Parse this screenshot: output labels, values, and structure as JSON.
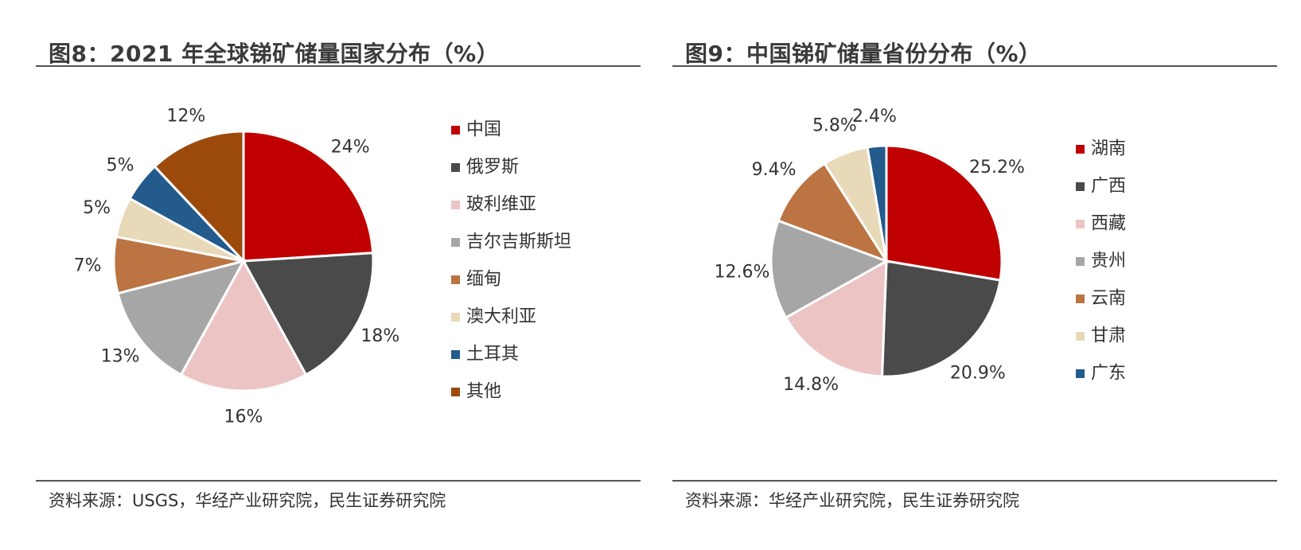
{
  "figures": [
    {
      "title": "图8：2021 年全球锑矿储量国家分布（%）",
      "source": "资料来源：USGS，华经产业研究院，民生证券研究院"
    },
    {
      "title": "图9：中国锑矿储量省份分布（%）",
      "source": "资料来源：华经产业研究院，民生证券研究院"
    }
  ],
  "chart_data": [
    {
      "type": "pie",
      "title": "图8：2021 年全球锑矿储量国家分布（%）",
      "legend_position": "right",
      "categories": [
        "中国",
        "俄罗斯",
        "玻利维亚",
        "吉尔吉斯斯坦",
        "缅甸",
        "澳大利亚",
        "土耳其",
        "其他"
      ],
      "values": [
        24,
        18,
        16,
        13,
        7,
        5,
        5,
        12
      ],
      "labels": [
        "24%",
        "18%",
        "16%",
        "13%",
        "7%",
        "5%",
        "5%",
        "12%"
      ],
      "colors": [
        "#c00000",
        "#4a4a4a",
        "#ecc4c4",
        "#a6a6a6",
        "#bb7442",
        "#e8d9b8",
        "#225b8c",
        "#9c4a0c"
      ]
    },
    {
      "type": "pie",
      "title": "图9：中国锑矿储量省份分布（%）",
      "legend_position": "right",
      "categories": [
        "湖南",
        "广西",
        "西藏",
        "贵州",
        "云南",
        "甘肃",
        "广东"
      ],
      "values": [
        25.2,
        20.9,
        14.8,
        12.6,
        9.4,
        5.8,
        2.4
      ],
      "labels": [
        "25.2%",
        "20.9%",
        "14.8%",
        "12.6%",
        "9.4%",
        "5.8%",
        "2.4%"
      ],
      "colors": [
        "#c00000",
        "#4a4a4a",
        "#ecc4c4",
        "#a6a6a6",
        "#bb7442",
        "#e8d9b8",
        "#225b8c"
      ]
    }
  ]
}
